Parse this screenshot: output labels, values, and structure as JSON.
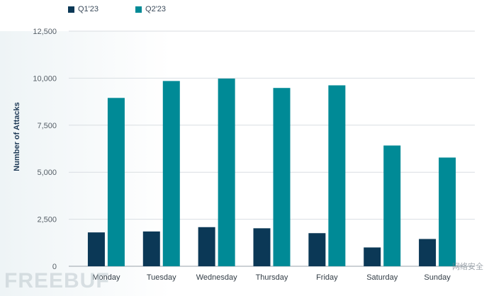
{
  "chart_data": {
    "type": "bar",
    "title": "",
    "xlabel": "",
    "ylabel": "Number of Attacks",
    "categories": [
      "Monday",
      "Tuesday",
      "Wednesday",
      "Thursday",
      "Friday",
      "Saturday",
      "Sunday"
    ],
    "series": [
      {
        "name": "Q1'23",
        "color": "#0b3856",
        "values": [
          1800,
          1850,
          2080,
          2020,
          1760,
          1000,
          1450
        ]
      },
      {
        "name": "Q2'23",
        "color": "#008a96",
        "values": [
          8950,
          9850,
          9980,
          9480,
          9620,
          6420,
          5780
        ]
      }
    ],
    "ylim": [
      0,
      12500
    ],
    "yticks": [
      0,
      2500,
      5000,
      7500,
      10000,
      12500
    ],
    "ytick_labels": [
      "0",
      "2,500",
      "5,000",
      "7,500",
      "10,000",
      "12,500"
    ],
    "grid": true,
    "legend_position": "top-left"
  },
  "watermark": {
    "left": "FREEBUF",
    "right": "网络安全"
  }
}
